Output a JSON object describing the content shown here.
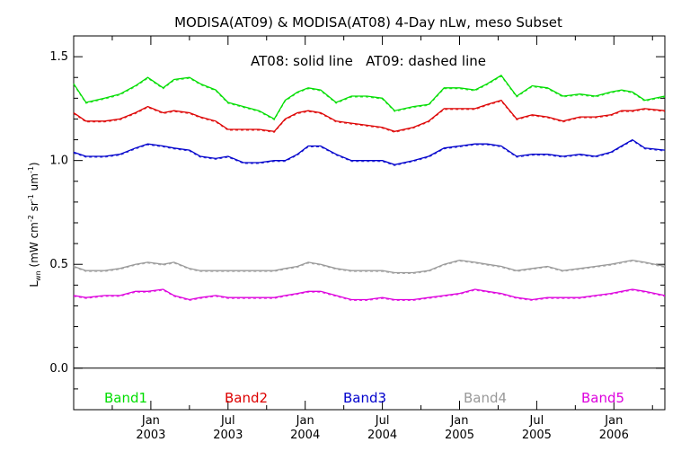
{
  "chart_data": {
    "type": "line",
    "title": "MODISA(AT09) & MODISA(AT08) 4-Day nLw, meso Subset",
    "annotation": "AT08: solid line   AT09: dashed line",
    "ylabel": {
      "base": "L",
      "sub": "wn",
      "units": "(mW cm",
      "cm_exp": "-2",
      "sr": "sr",
      "sr_exp": "-1",
      "um": "um",
      "um_exp": "-1",
      "close": ")"
    },
    "xlim": [
      2002.5,
      2006.33
    ],
    "ylim": [
      -0.2,
      1.6
    ],
    "grid": false,
    "yticks": [
      {
        "value": 0.0,
        "label": "0.0"
      },
      {
        "value": 0.5,
        "label": "0.5"
      },
      {
        "value": 1.0,
        "label": "1.0"
      },
      {
        "value": 1.5,
        "label": "1.5"
      }
    ],
    "xticks": [
      {
        "value": 2003.0,
        "month": "Jan",
        "year": "2003"
      },
      {
        "value": 2003.5,
        "month": "Jul",
        "year": "2003"
      },
      {
        "value": 2004.0,
        "month": "Jan",
        "year": "2004"
      },
      {
        "value": 2004.5,
        "month": "Jul",
        "year": "2004"
      },
      {
        "value": 2005.0,
        "month": "Jan",
        "year": "2005"
      },
      {
        "value": 2005.5,
        "month": "Jul",
        "year": "2005"
      },
      {
        "value": 2006.0,
        "month": "Jan",
        "year": "2006"
      }
    ],
    "reference_line": 0.0,
    "x": [
      2002.5,
      2002.58,
      2002.7,
      2002.8,
      2002.9,
      2002.98,
      2003.08,
      2003.15,
      2003.25,
      2003.32,
      2003.42,
      2003.5,
      2003.6,
      2003.7,
      2003.8,
      2003.87,
      2003.95,
      2004.02,
      2004.1,
      2004.2,
      2004.3,
      2004.4,
      2004.5,
      2004.58,
      2004.7,
      2004.8,
      2004.9,
      2005.0,
      2005.1,
      2005.18,
      2005.27,
      2005.37,
      2005.47,
      2005.57,
      2005.67,
      2005.78,
      2005.88,
      2005.98,
      2006.05,
      2006.12,
      2006.2,
      2006.33
    ],
    "series": [
      {
        "name": "Band1",
        "color": "#00dd00",
        "values": [
          1.37,
          1.28,
          1.3,
          1.32,
          1.36,
          1.4,
          1.35,
          1.39,
          1.4,
          1.37,
          1.34,
          1.28,
          1.26,
          1.24,
          1.2,
          1.29,
          1.33,
          1.35,
          1.34,
          1.28,
          1.31,
          1.31,
          1.3,
          1.24,
          1.26,
          1.27,
          1.35,
          1.35,
          1.34,
          1.37,
          1.41,
          1.31,
          1.36,
          1.35,
          1.31,
          1.32,
          1.31,
          1.33,
          1.34,
          1.33,
          1.29,
          1.31
        ]
      },
      {
        "name": "Band2",
        "color": "#dd0000",
        "values": [
          1.23,
          1.19,
          1.19,
          1.2,
          1.23,
          1.26,
          1.23,
          1.24,
          1.23,
          1.21,
          1.19,
          1.15,
          1.15,
          1.15,
          1.14,
          1.2,
          1.23,
          1.24,
          1.23,
          1.19,
          1.18,
          1.17,
          1.16,
          1.14,
          1.16,
          1.19,
          1.25,
          1.25,
          1.25,
          1.27,
          1.29,
          1.2,
          1.22,
          1.21,
          1.19,
          1.21,
          1.21,
          1.22,
          1.24,
          1.24,
          1.25,
          1.24
        ]
      },
      {
        "name": "Band3",
        "color": "#0000cc",
        "values": [
          1.04,
          1.02,
          1.02,
          1.03,
          1.06,
          1.08,
          1.07,
          1.06,
          1.05,
          1.02,
          1.01,
          1.02,
          0.99,
          0.99,
          1.0,
          1.0,
          1.03,
          1.07,
          1.07,
          1.03,
          1.0,
          1.0,
          1.0,
          0.98,
          1.0,
          1.02,
          1.06,
          1.07,
          1.08,
          1.08,
          1.07,
          1.02,
          1.03,
          1.03,
          1.02,
          1.03,
          1.02,
          1.04,
          1.07,
          1.1,
          1.06,
          1.05
        ]
      },
      {
        "name": "Band4",
        "color": "#999999",
        "values": [
          0.49,
          0.47,
          0.47,
          0.48,
          0.5,
          0.51,
          0.5,
          0.51,
          0.48,
          0.47,
          0.47,
          0.47,
          0.47,
          0.47,
          0.47,
          0.48,
          0.49,
          0.51,
          0.5,
          0.48,
          0.47,
          0.47,
          0.47,
          0.46,
          0.46,
          0.47,
          0.5,
          0.52,
          0.51,
          0.5,
          0.49,
          0.47,
          0.48,
          0.49,
          0.47,
          0.48,
          0.49,
          0.5,
          0.51,
          0.52,
          0.51,
          0.49
        ]
      },
      {
        "name": "Band5",
        "color": "#dd00dd",
        "values": [
          0.35,
          0.34,
          0.35,
          0.35,
          0.37,
          0.37,
          0.38,
          0.35,
          0.33,
          0.34,
          0.35,
          0.34,
          0.34,
          0.34,
          0.34,
          0.35,
          0.36,
          0.37,
          0.37,
          0.35,
          0.33,
          0.33,
          0.34,
          0.33,
          0.33,
          0.34,
          0.35,
          0.36,
          0.38,
          0.37,
          0.36,
          0.34,
          0.33,
          0.34,
          0.34,
          0.34,
          0.35,
          0.36,
          0.37,
          0.38,
          0.37,
          0.35
        ]
      }
    ],
    "legend": [
      {
        "label": "Band1",
        "color": "#00dd00"
      },
      {
        "label": "Band2",
        "color": "#dd0000"
      },
      {
        "label": "Band3",
        "color": "#0000cc"
      },
      {
        "label": "Band4",
        "color": "#999999"
      },
      {
        "label": "Band5",
        "color": "#dd00dd"
      }
    ]
  }
}
